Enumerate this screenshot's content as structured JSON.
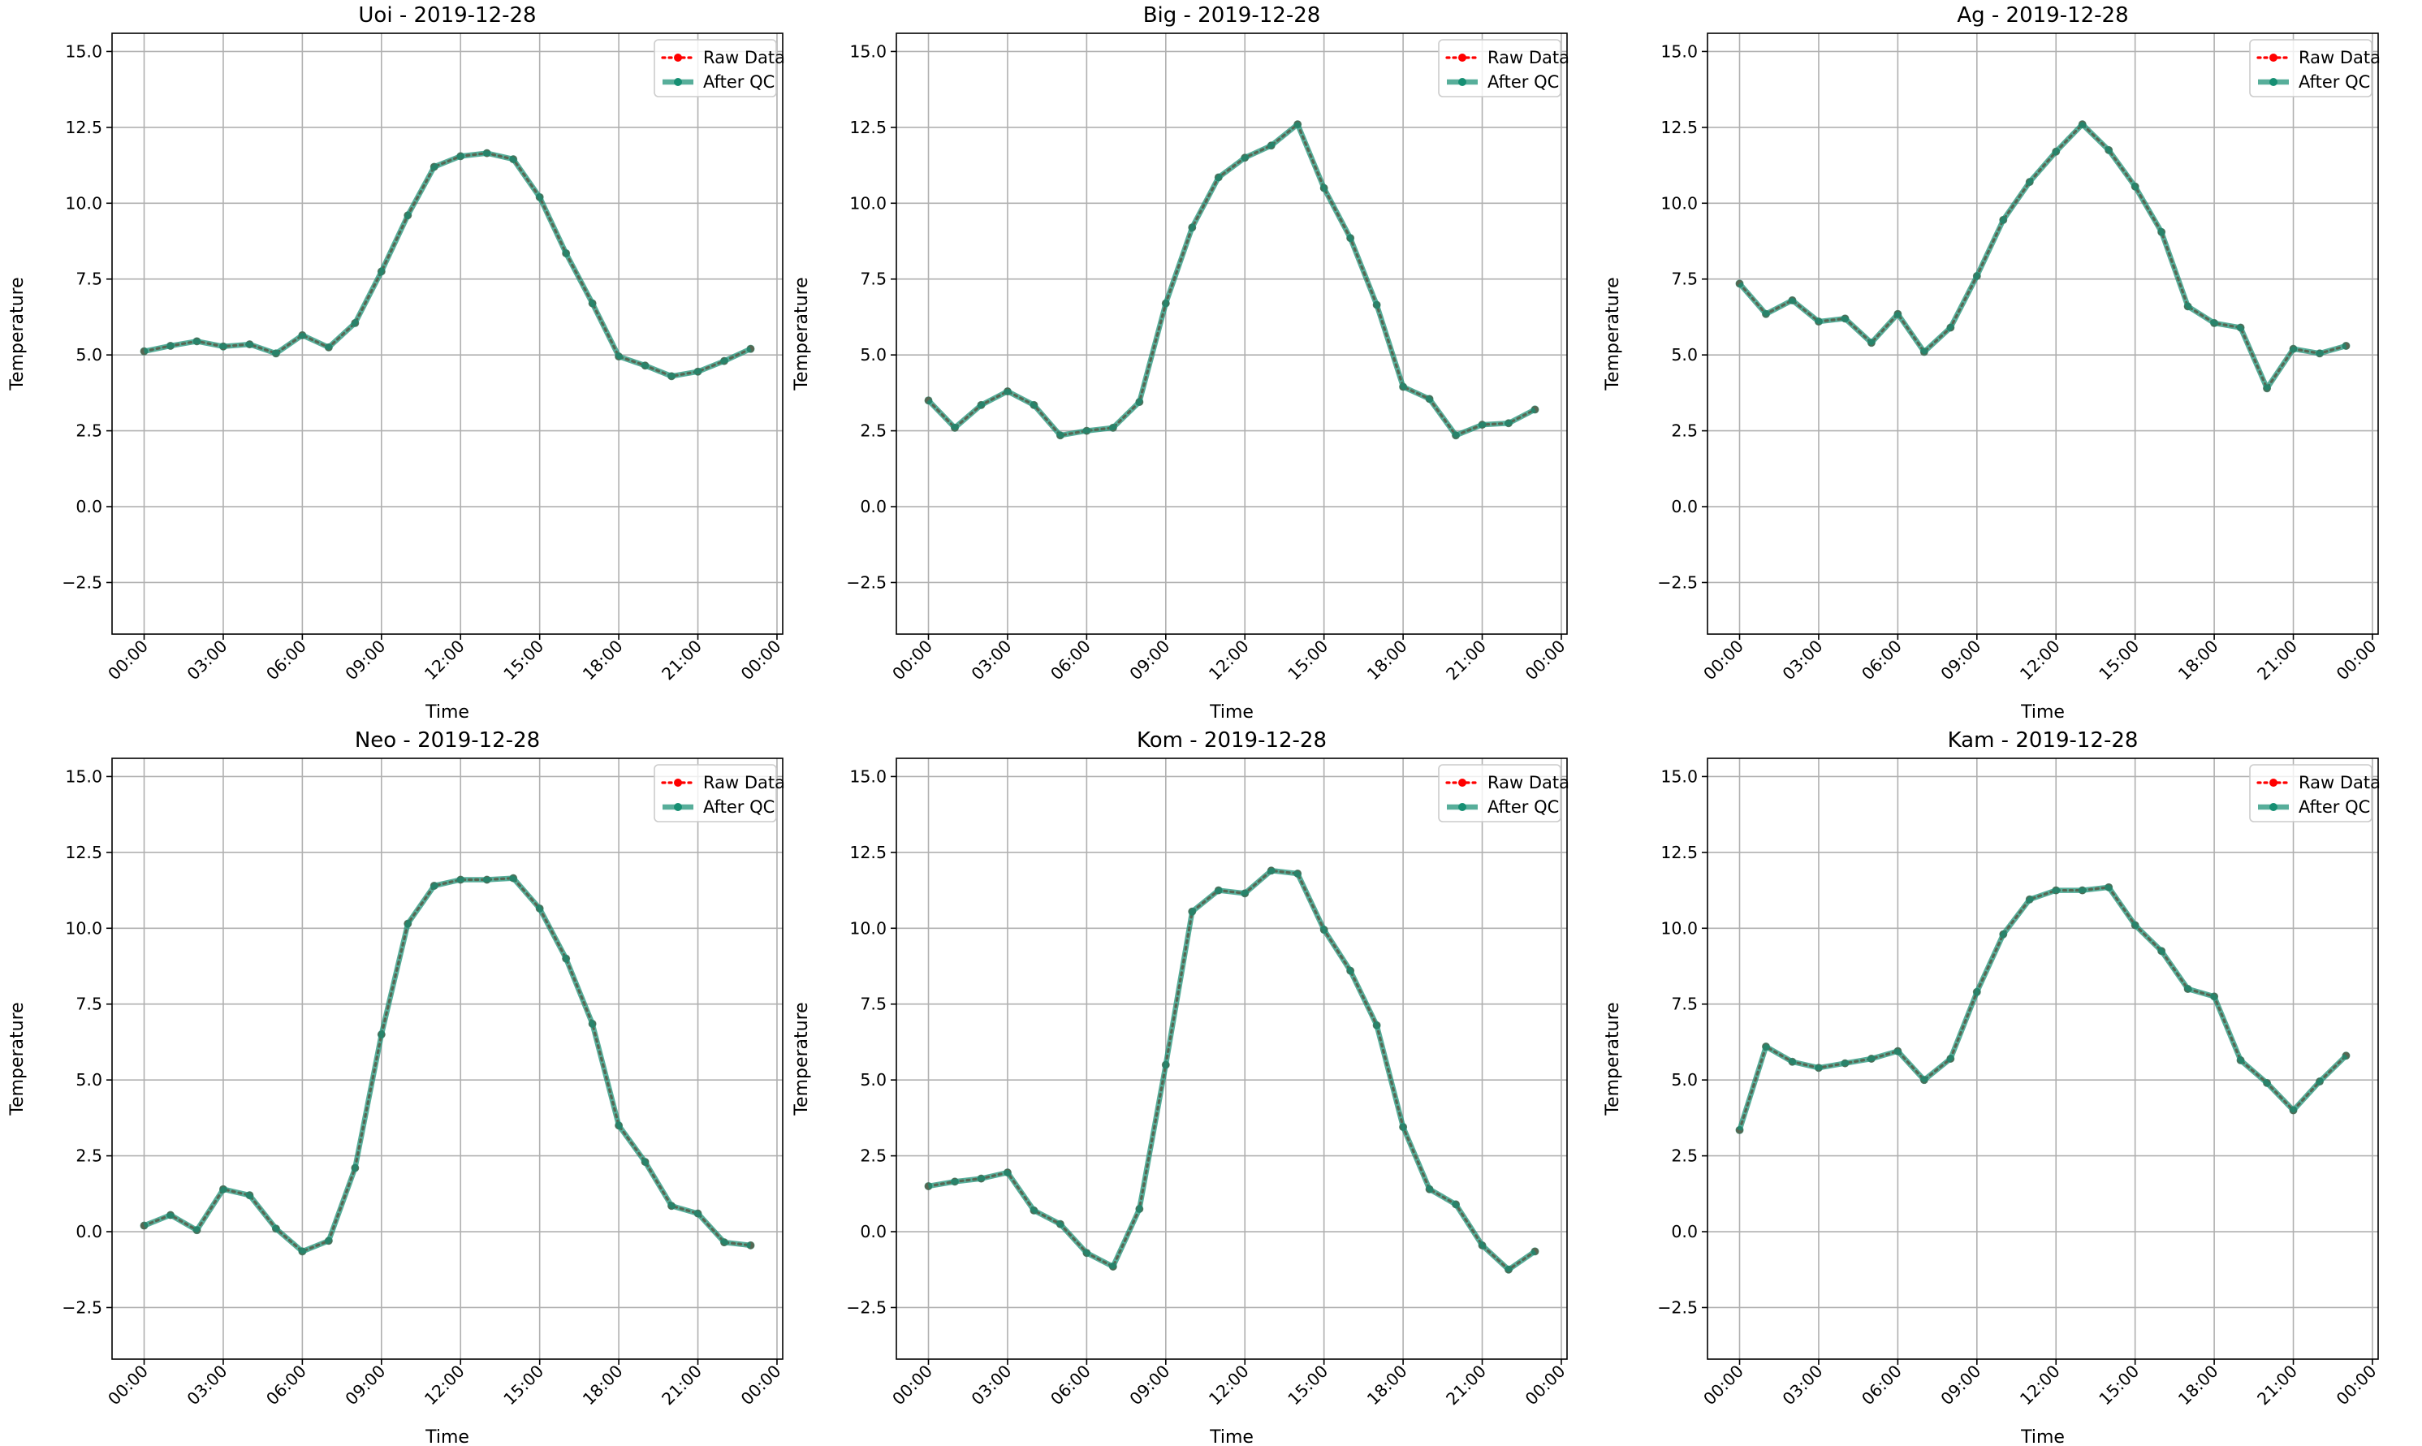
{
  "colors": {
    "raw": "#ff0000",
    "qc": "#168f73",
    "grid": "#b0b0b0",
    "frame": "#000000"
  },
  "chart_data": [
    {
      "type": "line",
      "title": "Uoi - 2019-12-28",
      "xlabel": "Time",
      "ylabel": "Temperature",
      "x_tick_labels": [
        "00:00",
        "03:00",
        "06:00",
        "09:00",
        "12:00",
        "15:00",
        "18:00",
        "21:00",
        "00:00"
      ],
      "y_tick_labels": [
        "−2.5",
        "0.0",
        "2.5",
        "5.0",
        "7.5",
        "10.0",
        "12.5",
        "15.0"
      ],
      "xlim": [
        "2019-12-27 22:47",
        "2019-12-29 00:13"
      ],
      "ylim": [
        -4.2,
        15.6
      ],
      "grid": true,
      "legend_position": "upper right",
      "legend": [
        "Raw Data",
        "After QC"
      ],
      "x": [
        "00:00",
        "01:00",
        "02:00",
        "03:00",
        "04:00",
        "05:00",
        "06:00",
        "07:00",
        "08:00",
        "09:00",
        "10:00",
        "11:00",
        "12:00",
        "13:00",
        "14:00",
        "15:00",
        "16:00",
        "17:00",
        "18:00",
        "19:00",
        "20:00",
        "21:00",
        "22:00",
        "23:00"
      ],
      "series": [
        {
          "name": "Raw Data",
          "values": [
            5.12,
            5.3,
            5.45,
            5.28,
            5.35,
            5.05,
            5.65,
            5.25,
            6.05,
            7.75,
            9.6,
            11.2,
            11.55,
            11.65,
            11.45,
            10.2,
            8.35,
            6.7,
            4.95,
            4.65,
            4.3,
            4.45,
            4.8,
            5.2
          ]
        },
        {
          "name": "After QC",
          "values": [
            5.12,
            5.3,
            5.45,
            5.28,
            5.35,
            5.05,
            5.65,
            5.25,
            6.05,
            7.75,
            9.6,
            11.2,
            11.55,
            11.65,
            11.45,
            10.2,
            8.35,
            6.7,
            4.95,
            4.65,
            4.3,
            4.45,
            4.8,
            5.2
          ]
        }
      ]
    },
    {
      "type": "line",
      "title": "Big - 2019-12-28",
      "xlabel": "Time",
      "ylabel": "Temperature",
      "x_tick_labels": [
        "00:00",
        "03:00",
        "06:00",
        "09:00",
        "12:00",
        "15:00",
        "18:00",
        "21:00",
        "00:00"
      ],
      "y_tick_labels": [
        "−2.5",
        "0.0",
        "2.5",
        "5.0",
        "7.5",
        "10.0",
        "12.5",
        "15.0"
      ],
      "xlim": [
        "2019-12-27 22:47",
        "2019-12-29 00:13"
      ],
      "ylim": [
        -4.2,
        15.6
      ],
      "grid": true,
      "legend_position": "upper right",
      "legend": [
        "Raw Data",
        "After QC"
      ],
      "x": [
        "00:00",
        "01:00",
        "02:00",
        "03:00",
        "04:00",
        "05:00",
        "06:00",
        "07:00",
        "08:00",
        "09:00",
        "10:00",
        "11:00",
        "12:00",
        "13:00",
        "14:00",
        "15:00",
        "16:00",
        "17:00",
        "18:00",
        "19:00",
        "20:00",
        "21:00",
        "22:00",
        "23:00"
      ],
      "series": [
        {
          "name": "Raw Data",
          "values": [
            3.5,
            2.6,
            3.35,
            3.8,
            3.35,
            2.35,
            2.5,
            2.6,
            3.45,
            6.7,
            9.2,
            10.85,
            11.5,
            11.9,
            12.6,
            10.5,
            8.85,
            6.65,
            3.95,
            3.55,
            2.35,
            2.7,
            2.75,
            3.2
          ]
        },
        {
          "name": "After QC",
          "values": [
            3.5,
            2.6,
            3.35,
            3.8,
            3.35,
            2.35,
            2.5,
            2.6,
            3.45,
            6.7,
            9.2,
            10.85,
            11.5,
            11.9,
            12.6,
            10.5,
            8.85,
            6.65,
            3.95,
            3.55,
            2.35,
            2.7,
            2.75,
            3.2
          ]
        }
      ]
    },
    {
      "type": "line",
      "title": "Ag - 2019-12-28",
      "xlabel": "Time",
      "ylabel": "Temperature",
      "x_tick_labels": [
        "00:00",
        "03:00",
        "06:00",
        "09:00",
        "12:00",
        "15:00",
        "18:00",
        "21:00",
        "00:00"
      ],
      "y_tick_labels": [
        "−2.5",
        "0.0",
        "2.5",
        "5.0",
        "7.5",
        "10.0",
        "12.5",
        "15.0"
      ],
      "xlim": [
        "2019-12-27 22:47",
        "2019-12-29 00:13"
      ],
      "ylim": [
        -4.2,
        15.6
      ],
      "grid": true,
      "legend_position": "upper right",
      "legend": [
        "Raw Data",
        "After QC"
      ],
      "x": [
        "00:00",
        "01:00",
        "02:00",
        "03:00",
        "04:00",
        "05:00",
        "06:00",
        "07:00",
        "08:00",
        "09:00",
        "10:00",
        "11:00",
        "12:00",
        "13:00",
        "14:00",
        "15:00",
        "16:00",
        "17:00",
        "18:00",
        "19:00",
        "20:00",
        "21:00",
        "22:00",
        "23:00"
      ],
      "series": [
        {
          "name": "Raw Data",
          "values": [
            7.35,
            6.35,
            6.8,
            6.1,
            6.2,
            5.4,
            6.35,
            5.1,
            5.9,
            7.6,
            9.45,
            10.7,
            11.7,
            12.6,
            11.75,
            10.55,
            9.05,
            6.6,
            6.05,
            5.9,
            3.9,
            5.2,
            5.05,
            5.3
          ]
        },
        {
          "name": "After QC",
          "values": [
            7.35,
            6.35,
            6.8,
            6.1,
            6.2,
            5.4,
            6.35,
            5.1,
            5.9,
            7.6,
            9.45,
            10.7,
            11.7,
            12.6,
            11.75,
            10.55,
            9.05,
            6.6,
            6.05,
            5.9,
            3.9,
            5.2,
            5.05,
            5.3
          ]
        }
      ]
    },
    {
      "type": "line",
      "title": "Neo - 2019-12-28",
      "xlabel": "Time",
      "ylabel": "Temperature",
      "x_tick_labels": [
        "00:00",
        "03:00",
        "06:00",
        "09:00",
        "12:00",
        "15:00",
        "18:00",
        "21:00",
        "00:00"
      ],
      "y_tick_labels": [
        "−2.5",
        "0.0",
        "2.5",
        "5.0",
        "7.5",
        "10.0",
        "12.5",
        "15.0"
      ],
      "xlim": [
        "2019-12-27 22:47",
        "2019-12-29 00:13"
      ],
      "ylim": [
        -4.2,
        15.6
      ],
      "grid": true,
      "legend_position": "upper right",
      "legend": [
        "Raw Data",
        "After QC"
      ],
      "x": [
        "00:00",
        "01:00",
        "02:00",
        "03:00",
        "04:00",
        "05:00",
        "06:00",
        "07:00",
        "08:00",
        "09:00",
        "10:00",
        "11:00",
        "12:00",
        "13:00",
        "14:00",
        "15:00",
        "16:00",
        "17:00",
        "18:00",
        "19:00",
        "20:00",
        "21:00",
        "22:00",
        "23:00"
      ],
      "series": [
        {
          "name": "Raw Data",
          "values": [
            0.2,
            0.55,
            0.05,
            1.4,
            1.2,
            0.1,
            -0.65,
            -0.3,
            2.1,
            6.5,
            10.15,
            11.4,
            11.6,
            11.6,
            11.65,
            10.65,
            9.0,
            6.85,
            3.5,
            2.3,
            0.85,
            0.6,
            -0.35,
            -0.45
          ]
        },
        {
          "name": "After QC",
          "values": [
            0.2,
            0.55,
            0.05,
            1.4,
            1.2,
            0.1,
            -0.65,
            -0.3,
            2.1,
            6.5,
            10.15,
            11.4,
            11.6,
            11.6,
            11.65,
            10.65,
            9.0,
            6.85,
            3.5,
            2.3,
            0.85,
            0.6,
            -0.35,
            -0.45
          ]
        }
      ]
    },
    {
      "type": "line",
      "title": "Kom - 2019-12-28",
      "xlabel": "Time",
      "ylabel": "Temperature",
      "x_tick_labels": [
        "00:00",
        "03:00",
        "06:00",
        "09:00",
        "12:00",
        "15:00",
        "18:00",
        "21:00",
        "00:00"
      ],
      "y_tick_labels": [
        "−2.5",
        "0.0",
        "2.5",
        "5.0",
        "7.5",
        "10.0",
        "12.5",
        "15.0"
      ],
      "xlim": [
        "2019-12-27 22:47",
        "2019-12-29 00:13"
      ],
      "ylim": [
        -4.2,
        15.6
      ],
      "grid": true,
      "legend_position": "upper right",
      "legend": [
        "Raw Data",
        "After QC"
      ],
      "x": [
        "00:00",
        "01:00",
        "02:00",
        "03:00",
        "04:00",
        "05:00",
        "06:00",
        "07:00",
        "08:00",
        "09:00",
        "10:00",
        "11:00",
        "12:00",
        "13:00",
        "14:00",
        "15:00",
        "16:00",
        "17:00",
        "18:00",
        "19:00",
        "20:00",
        "21:00",
        "22:00",
        "23:00"
      ],
      "series": [
        {
          "name": "Raw Data",
          "values": [
            1.5,
            1.65,
            1.75,
            1.95,
            0.7,
            0.25,
            -0.7,
            -1.15,
            0.75,
            5.5,
            10.55,
            11.25,
            11.15,
            11.9,
            11.8,
            9.95,
            8.6,
            6.8,
            3.45,
            1.4,
            0.9,
            -0.45,
            -1.25,
            -0.65
          ]
        },
        {
          "name": "After QC",
          "values": [
            1.5,
            1.65,
            1.75,
            1.95,
            0.7,
            0.25,
            -0.7,
            -1.15,
            0.75,
            5.5,
            10.55,
            11.25,
            11.15,
            11.9,
            11.8,
            9.95,
            8.6,
            6.8,
            3.45,
            1.4,
            0.9,
            -0.45,
            -1.25,
            -0.65
          ]
        }
      ]
    },
    {
      "type": "line",
      "title": "Kam - 2019-12-28",
      "xlabel": "Time",
      "ylabel": "Temperature",
      "x_tick_labels": [
        "00:00",
        "03:00",
        "06:00",
        "09:00",
        "12:00",
        "15:00",
        "18:00",
        "21:00",
        "00:00"
      ],
      "y_tick_labels": [
        "−2.5",
        "0.0",
        "2.5",
        "5.0",
        "7.5",
        "10.0",
        "12.5",
        "15.0"
      ],
      "xlim": [
        "2019-12-27 22:47",
        "2019-12-29 00:13"
      ],
      "ylim": [
        -4.2,
        15.6
      ],
      "grid": true,
      "legend_position": "upper right",
      "legend": [
        "Raw Data",
        "After QC"
      ],
      "x": [
        "00:00",
        "01:00",
        "02:00",
        "03:00",
        "04:00",
        "05:00",
        "06:00",
        "07:00",
        "08:00",
        "09:00",
        "10:00",
        "11:00",
        "12:00",
        "13:00",
        "14:00",
        "15:00",
        "16:00",
        "17:00",
        "18:00",
        "19:00",
        "20:00",
        "21:00",
        "22:00",
        "23:00"
      ],
      "series": [
        {
          "name": "Raw Data",
          "values": [
            3.35,
            6.1,
            5.6,
            5.4,
            5.55,
            5.7,
            5.95,
            5.0,
            5.7,
            7.9,
            9.8,
            10.95,
            11.25,
            11.25,
            11.35,
            10.1,
            9.25,
            8.0,
            7.75,
            5.65,
            4.9,
            4.0,
            4.95,
            5.8
          ]
        },
        {
          "name": "After QC",
          "values": [
            3.35,
            6.1,
            5.6,
            5.4,
            5.55,
            5.7,
            5.95,
            5.0,
            5.7,
            7.9,
            9.8,
            10.95,
            11.25,
            11.25,
            11.35,
            10.1,
            9.25,
            8.0,
            7.75,
            5.65,
            4.9,
            4.0,
            4.95,
            5.8
          ]
        }
      ]
    }
  ]
}
